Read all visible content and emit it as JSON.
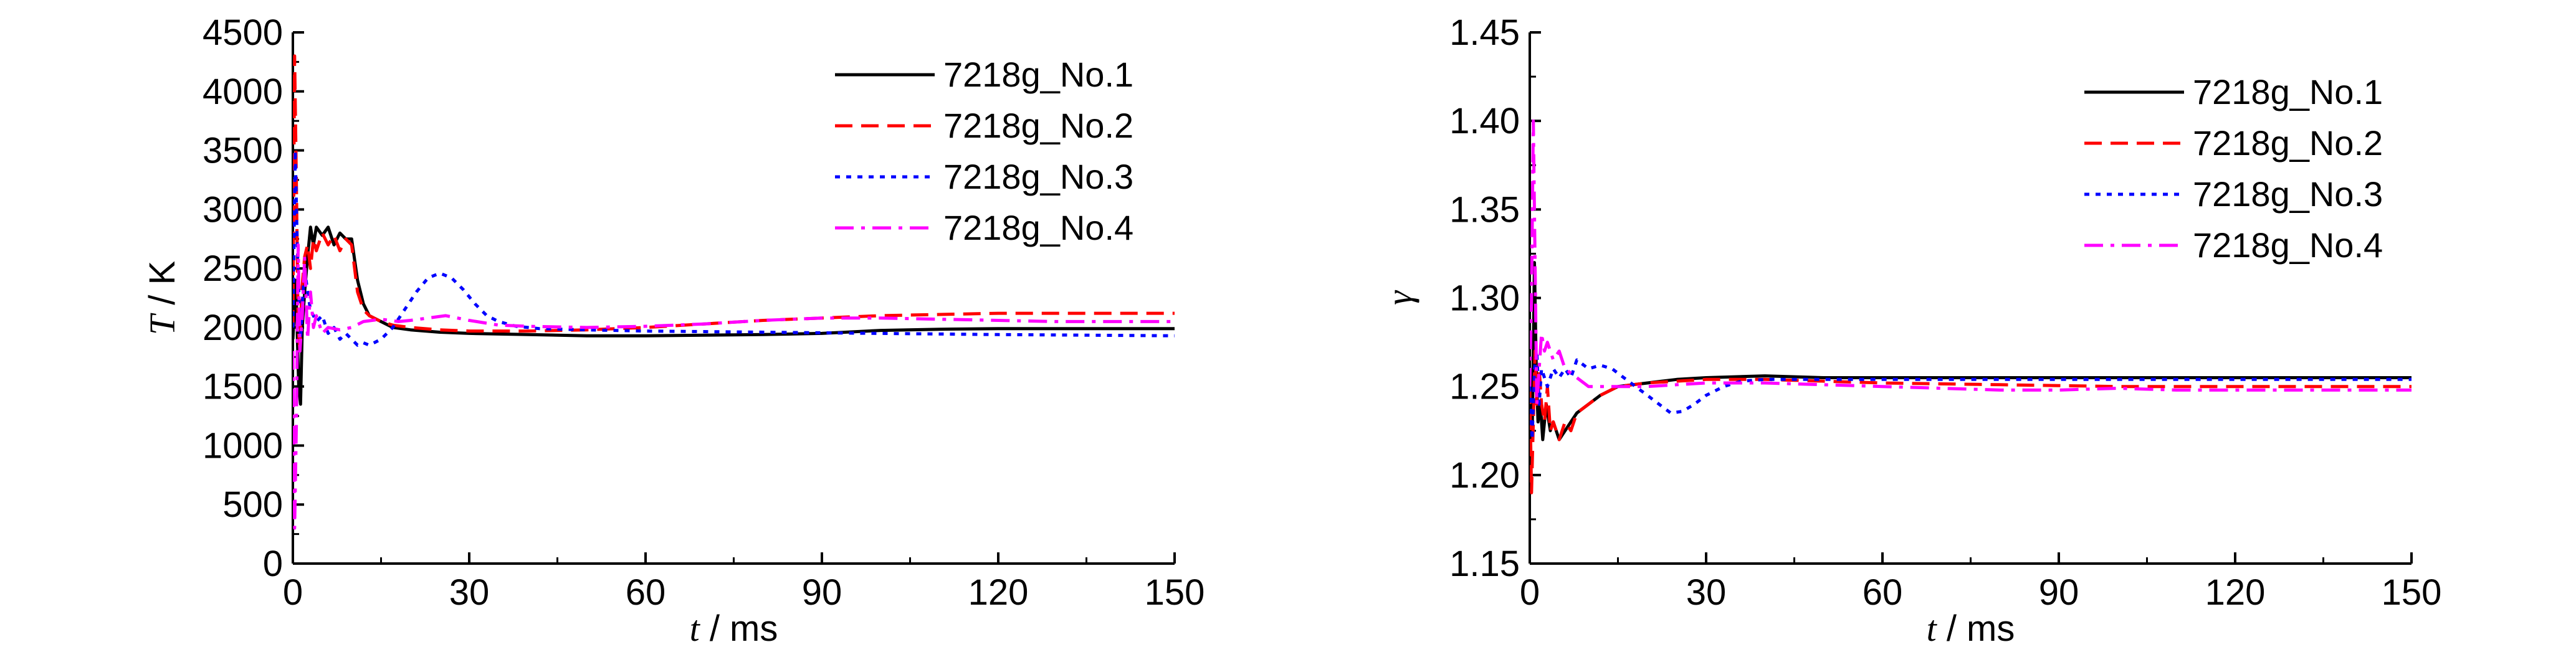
{
  "chart_data": [
    {
      "type": "line",
      "ylabel_italic": "T",
      "ylabel_rest": " / K",
      "xlabel_italic": "t",
      "xlabel_rest": " / ms",
      "xlim": [
        0,
        150
      ],
      "ylim": [
        0,
        4500
      ],
      "xticks": [
        0,
        30,
        60,
        90,
        120,
        150
      ],
      "yticks": [
        0,
        500,
        1000,
        1500,
        2000,
        2500,
        3000,
        3500,
        4000,
        4500
      ],
      "ytick_decimals": 0,
      "legend_position": "top-right",
      "series": [
        {
          "name": "7218g_No.1",
          "color": "#000000",
          "dash": "solid",
          "x": [
            0,
            0.5,
            1,
            1.3,
            1.6,
            2,
            2.5,
            3,
            3.5,
            4,
            5,
            6,
            7,
            8,
            9,
            10,
            11,
            12,
            13,
            15,
            17,
            20,
            25,
            30,
            40,
            50,
            60,
            70,
            80,
            90,
            100,
            110,
            120,
            130,
            140,
            150
          ],
          "y": [
            1900,
            2400,
            1500,
            1350,
            2000,
            2300,
            2600,
            2850,
            2700,
            2850,
            2780,
            2850,
            2700,
            2800,
            2750,
            2750,
            2400,
            2200,
            2100,
            2050,
            2000,
            1980,
            1960,
            1950,
            1940,
            1930,
            1930,
            1935,
            1940,
            1950,
            1975,
            1985,
            1990,
            1990,
            1990,
            1990
          ]
        },
        {
          "name": "7218g_No.2",
          "color": "#ff0000",
          "dash": "dashed",
          "x": [
            0,
            0.3,
            0.6,
            0.9,
            1.2,
            1.5,
            2,
            2.5,
            3,
            3.5,
            4,
            5,
            6,
            7,
            8,
            9,
            10,
            11,
            12,
            13,
            15,
            17,
            20,
            25,
            30,
            40,
            50,
            60,
            70,
            80,
            90,
            100,
            110,
            120,
            130,
            140,
            150
          ],
          "y": [
            2000,
            4300,
            3200,
            2000,
            1800,
            2300,
            2600,
            2700,
            2500,
            2750,
            2650,
            2800,
            2700,
            2780,
            2650,
            2750,
            2700,
            2300,
            2150,
            2100,
            2050,
            2020,
            2000,
            1980,
            1970,
            1970,
            1980,
            2000,
            2030,
            2060,
            2080,
            2100,
            2110,
            2120,
            2120,
            2120,
            2120
          ]
        },
        {
          "name": "7218g_No.3",
          "color": "#0000ff",
          "dash": "dotted",
          "x": [
            0,
            0.4,
            0.7,
            1,
            1.3,
            1.6,
            2,
            2.5,
            3,
            4,
            5,
            6,
            7,
            8,
            9,
            10,
            11,
            12,
            13,
            15,
            17,
            19,
            21,
            23,
            25,
            27,
            29,
            31,
            33,
            35,
            38,
            42,
            50,
            60,
            80,
            100,
            120,
            150
          ],
          "y": [
            2000,
            3500,
            2800,
            2300,
            1900,
            2200,
            2500,
            2300,
            2150,
            2050,
            2100,
            1950,
            2000,
            1900,
            1950,
            1900,
            1850,
            1870,
            1850,
            1900,
            2000,
            2150,
            2300,
            2420,
            2460,
            2420,
            2320,
            2200,
            2100,
            2050,
            2010,
            1990,
            1980,
            1970,
            1960,
            1950,
            1940,
            1930
          ]
        },
        {
          "name": "7218g_No.4",
          "color": "#ff00ff",
          "dash": "dashdot",
          "x": [
            0,
            0.3,
            0.6,
            0.9,
            1.2,
            1.6,
            2,
            2.5,
            3,
            3.5,
            4,
            5,
            6,
            8,
            10,
            12,
            15,
            18,
            20,
            23,
            26,
            30,
            35,
            40,
            50,
            60,
            70,
            80,
            90,
            100,
            110,
            120,
            130,
            140,
            150
          ],
          "y": [
            1800,
            300,
            1200,
            2700,
            1800,
            2100,
            2600,
            1900,
            2300,
            2000,
            2100,
            1950,
            2000,
            1980,
            2000,
            2050,
            2070,
            2050,
            2060,
            2080,
            2100,
            2060,
            2020,
            2010,
            2000,
            2010,
            2030,
            2060,
            2080,
            2080,
            2070,
            2060,
            2050,
            2050,
            2050
          ]
        }
      ]
    },
    {
      "type": "line",
      "ylabel_italic": "γ",
      "ylabel_rest": "",
      "xlabel_italic": "t",
      "xlabel_rest": " / ms",
      "xlim": [
        0,
        150
      ],
      "ylim": [
        1.15,
        1.45
      ],
      "xticks": [
        0,
        30,
        60,
        90,
        120,
        150
      ],
      "yticks": [
        1.15,
        1.2,
        1.25,
        1.3,
        1.35,
        1.4,
        1.45
      ],
      "ytick_decimals": 2,
      "legend_position": "top-right",
      "series": [
        {
          "name": "7218g_No.1",
          "color": "#000000",
          "dash": "solid",
          "x": [
            0,
            0.4,
            0.8,
            1.1,
            1.4,
            1.8,
            2.2,
            2.8,
            3.5,
            4,
            5,
            6,
            7,
            8,
            10,
            12,
            15,
            20,
            25,
            30,
            40,
            50,
            60,
            80,
            100,
            120,
            150
          ],
          "y": [
            1.25,
            1.22,
            1.32,
            1.26,
            1.23,
            1.24,
            1.22,
            1.24,
            1.225,
            1.23,
            1.22,
            1.225,
            1.23,
            1.235,
            1.24,
            1.245,
            1.25,
            1.252,
            1.254,
            1.255,
            1.256,
            1.255,
            1.255,
            1.255,
            1.255,
            1.255,
            1.255
          ]
        },
        {
          "name": "7218g_No.2",
          "color": "#ff0000",
          "dash": "dashed",
          "x": [
            0,
            0.3,
            0.6,
            0.9,
            1.2,
            1.6,
            2,
            2.5,
            3,
            3.5,
            4,
            5,
            6,
            7,
            8,
            10,
            12,
            15,
            20,
            25,
            30,
            40,
            50,
            60,
            80,
            100,
            120,
            150
          ],
          "y": [
            1.25,
            1.19,
            1.23,
            1.27,
            1.24,
            1.26,
            1.24,
            1.23,
            1.25,
            1.225,
            1.23,
            1.22,
            1.23,
            1.225,
            1.235,
            1.24,
            1.245,
            1.25,
            1.252,
            1.253,
            1.254,
            1.254,
            1.253,
            1.252,
            1.251,
            1.25,
            1.25,
            1.25
          ]
        },
        {
          "name": "7218g_No.3",
          "color": "#0000ff",
          "dash": "dotted",
          "x": [
            0,
            0.4,
            0.8,
            1.2,
            1.6,
            2,
            3,
            4,
            5,
            6,
            7,
            8,
            10,
            12,
            14,
            16,
            18,
            20,
            22,
            24,
            26,
            28,
            30,
            33,
            36,
            40,
            50,
            60,
            80,
            100,
            120,
            150
          ],
          "y": [
            1.25,
            1.22,
            1.26,
            1.27,
            1.24,
            1.26,
            1.25,
            1.26,
            1.255,
            1.26,
            1.255,
            1.265,
            1.26,
            1.262,
            1.26,
            1.255,
            1.25,
            1.245,
            1.24,
            1.235,
            1.236,
            1.24,
            1.245,
            1.25,
            1.253,
            1.254,
            1.254,
            1.254,
            1.254,
            1.254,
            1.254,
            1.254
          ]
        },
        {
          "name": "7218g_No.4",
          "color": "#ff00ff",
          "dash": "dashdot",
          "x": [
            0,
            0.3,
            0.6,
            0.9,
            1.2,
            1.6,
            2,
            2.5,
            3,
            4,
            5,
            6,
            8,
            10,
            12,
            15,
            20,
            25,
            30,
            40,
            50,
            60,
            70,
            80,
            90,
            100,
            110,
            120,
            150
          ],
          "y": [
            1.25,
            1.3,
            1.4,
            1.32,
            1.24,
            1.26,
            1.28,
            1.27,
            1.275,
            1.265,
            1.27,
            1.26,
            1.255,
            1.25,
            1.25,
            1.25,
            1.25,
            1.251,
            1.252,
            1.252,
            1.251,
            1.25,
            1.249,
            1.248,
            1.248,
            1.249,
            1.248,
            1.248,
            1.248
          ]
        }
      ]
    }
  ]
}
